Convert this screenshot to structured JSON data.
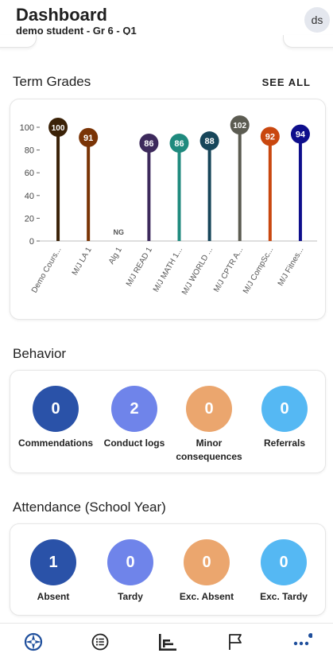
{
  "header": {
    "title": "Dashboard",
    "subtitle": "demo student - Gr 6 - Q1",
    "avatar_initials": "ds"
  },
  "grades": {
    "title": "Term Grades",
    "see_all": "SEE ALL"
  },
  "chart_data": {
    "type": "bar",
    "categories": [
      "Demo Cours...",
      "M/J LA 1",
      "Alg 1",
      "M/J READ 1",
      "M/J MATH 1...",
      "M/J WORLD ...",
      "M/J CPTR A...",
      "M/J CompSc...",
      "M/J Fitnes..."
    ],
    "values": [
      100,
      91,
      null,
      86,
      86,
      88,
      102,
      92,
      94
    ],
    "value_labels": [
      "100",
      "91",
      "NG",
      "86",
      "86",
      "88",
      "102",
      "92",
      "94"
    ],
    "colors": [
      "#3b2208",
      "#7a3406",
      null,
      "#3d2a5c",
      "#1f8a7e",
      "#17465a",
      "#5c5c52",
      "#c9470f",
      "#0e0e8c"
    ],
    "yticks": [
      0,
      20,
      40,
      60,
      80,
      100
    ],
    "ylim": [
      0,
      100
    ]
  },
  "behavior": {
    "title": "Behavior",
    "items": [
      {
        "label": "Commendations",
        "value": "0",
        "color": "#2a52a8"
      },
      {
        "label": "Conduct logs",
        "value": "2",
        "color": "#6f84ea"
      },
      {
        "label": "Minor consequences",
        "value": "0",
        "color": "#eba66e"
      },
      {
        "label": "Referrals",
        "value": "0",
        "color": "#55b8f3"
      }
    ]
  },
  "attendance": {
    "title": "Attendance (School Year)",
    "items": [
      {
        "label": "Absent",
        "value": "1",
        "color": "#2a52a8"
      },
      {
        "label": "Tardy",
        "value": "0",
        "color": "#6f84ea"
      },
      {
        "label": "Exc. Absent",
        "value": "0",
        "color": "#eba66e"
      },
      {
        "label": "Exc. Tardy",
        "value": "0",
        "color": "#55b8f3"
      }
    ]
  },
  "nav": {
    "icons": [
      "dashboard-icon",
      "list-icon",
      "chart-icon",
      "flag-icon",
      "more-icon"
    ],
    "colors": {
      "active": "#1f4f9c",
      "inactive": "#222222",
      "badge": "#1f4f9c"
    }
  }
}
